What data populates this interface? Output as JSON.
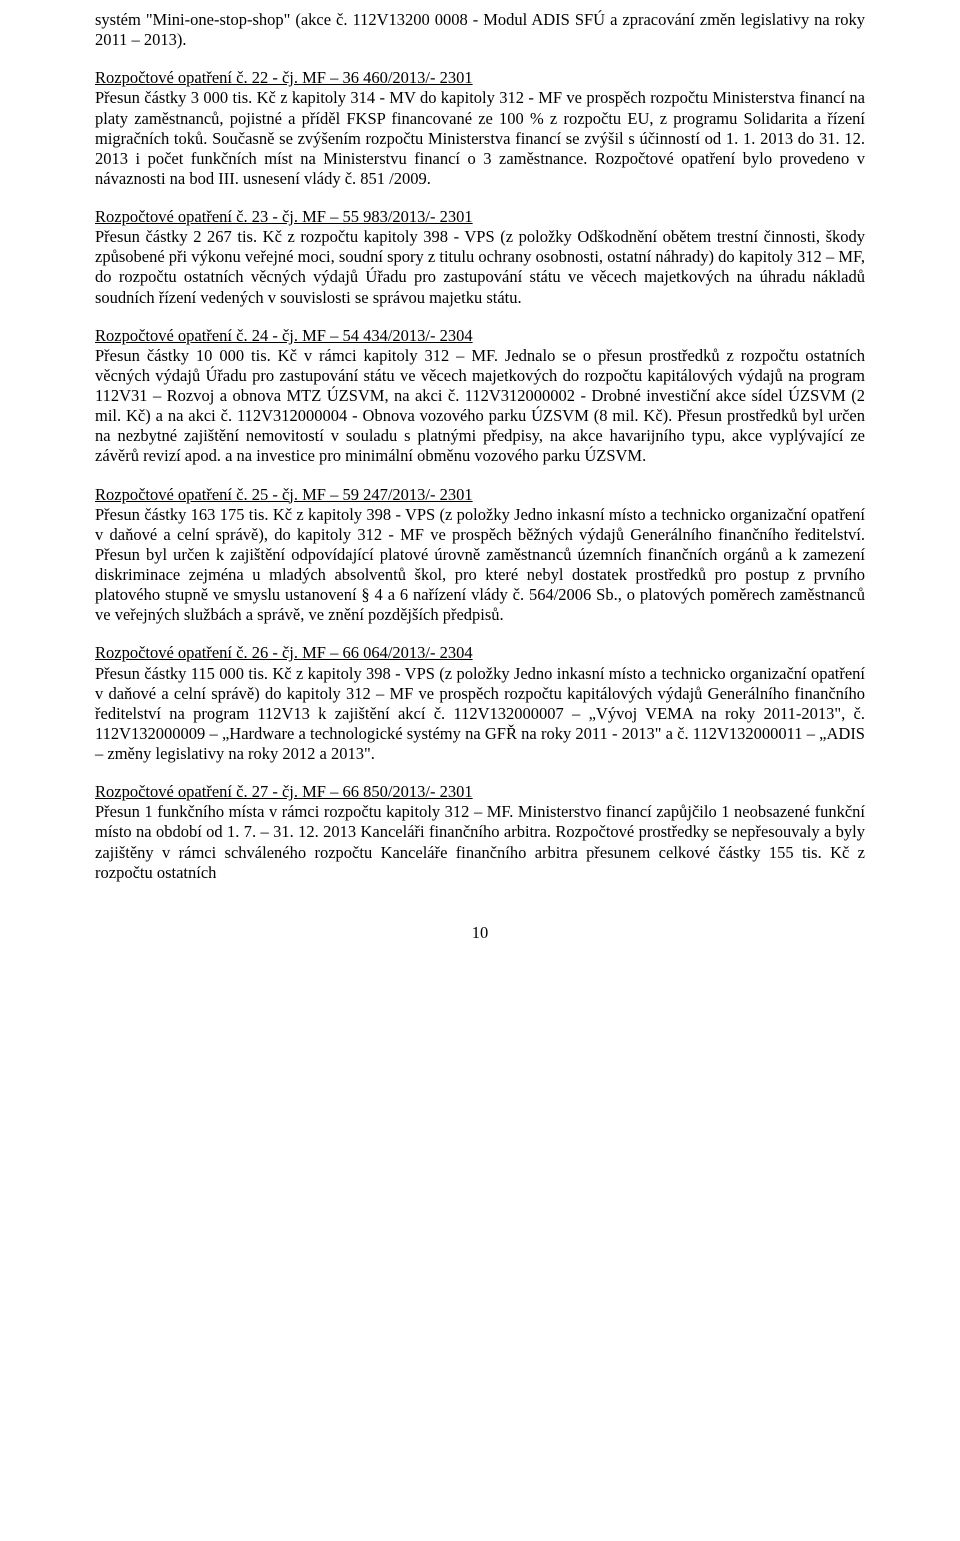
{
  "document": {
    "font_family": "Times New Roman",
    "font_size_pt": 12,
    "text_color": "#000000",
    "background_color": "#ffffff",
    "page_number": "10"
  },
  "intro_para": "systém \"Mini-one-stop-shop\" (akce č. 112V13200 0008 - Modul ADIS SFÚ a zpracování změn legislativy na roky 2011 – 2013).",
  "sections": [
    {
      "heading": "Rozpočtové opatření č. 22 - čj. MF – 36 460/2013/- 2301",
      "body": "Přesun částky 3 000 tis. Kč z kapitoly 314 - MV do kapitoly  312 - MF ve prospěch rozpočtu Ministerstva financí na platy zaměstnanců, pojistné a příděl FKSP financované ze 100 % z rozpočtu EU, z programu Solidarita a řízení migračních toků. Současně se zvýšením rozpočtu Ministerstva financí se  zvýšil s účinností od 1. 1. 2013 do 31. 12. 2013 i počet funkčních míst na Ministerstvu financí o 3 zaměstnance. Rozpočtové opatření bylo provedeno v návaznosti na bod III. usnesení vlády č. 851 /2009."
    },
    {
      "heading": "Rozpočtové opatření č. 23 - čj. MF – 55 983/2013/- 2301",
      "body": "Přesun částky 2 267 tis. Kč z rozpočtu kapitoly 398 - VPS (z položky Odškodnění obětem trestní činnosti, škody způsobené při výkonu veřejné moci, soudní spory z titulu ochrany osobnosti, ostatní náhrady) do kapitoly 312 – MF, do rozpočtu ostatních věcných  výdajů Úřadu pro zastupování státu ve  věcech majetkových na úhradu nákladů soudních řízení vedených v souvislosti se správou majetku státu."
    },
    {
      "heading": "Rozpočtové opatření č. 24 - čj. MF – 54 434/2013/- 2304",
      "body": "Přesun částky 10 000 tis. Kč v rámci kapitoly 312 – MF. Jednalo se o přesun prostředků z rozpočtu ostatních věcných výdajů Úřadu pro zastupování státu ve věcech majetkových do rozpočtu kapitálových výdajů na program 112V31 – Rozvoj a obnova MTZ ÚZSVM, na akci č. 112V312000002 - Drobné investiční akce sídel ÚZSVM (2 mil. Kč) a na akci č. 112V312000004 - Obnova vozového parku ÚZSVM (8 mil. Kč). Přesun prostředků byl určen na nezbytné zajištění nemovitostí v souladu s platnými předpisy, na akce havarijního typu, akce vyplývající ze závěrů revizí apod. a na investice pro minimální obměnu vozového parku ÚZSVM."
    },
    {
      "heading": "Rozpočtové opatření č. 25 - čj. MF – 59 247/2013/- 2301",
      "body": "Přesun částky 163 175 tis. Kč z kapitoly 398 - VPS (z položky Jedno inkasní místo a technicko organizační opatření v daňové a celní správě), do kapitoly  312 - MF ve prospěch běžných výdajů Generálního finančního ředitelství. Přesun byl určen k zajištění odpovídající platové úrovně zaměstnanců územních finančních orgánů a k zamezení diskriminace zejména u mladých absolventů škol, pro které nebyl dostatek prostředků pro postup z prvního platového stupně ve smyslu ustanovení § 4 a 6 nařízení vlády č. 564/2006 Sb., o platových poměrech zaměstnanců ve veřejných službách a správě, ve znění pozdějších předpisů."
    },
    {
      "heading": "Rozpočtové opatření č. 26 - čj. MF – 66 064/2013/- 2304",
      "body": "Přesun částky 115 000 tis. Kč z kapitoly 398 - VPS (z položky Jedno inkasní místo a technicko organizační opatření v daňové a celní správě) do kapitoly  312 – MF ve prospěch rozpočtu kapitálových výdajů Generálního finančního ředitelství na program 112V13 k zajištění akcí č. 112V132000007 – „Vývoj VEMA na roky 2011-2013\", č. 112V132000009 – „Hardware a technologické systémy na GFŘ na roky 2011 - 2013\" a č. 112V132000011 – „ADIS – změny legislativy na roky 2012 a 2013\"."
    },
    {
      "heading": "Rozpočtové opatření č. 27 - čj. MF – 66 850/2013/- 2301",
      "body": "Přesun 1 funkčního místa v rámci rozpočtu kapitoly 312 – MF. Ministerstvo financí zapůjčilo 1 neobsazené funkční místo na období od 1. 7. – 31. 12.  2013 Kanceláři finančního arbitra. Rozpočtové prostředky se nepřesouvaly a byly zajištěny v rámci schváleného rozpočtu Kanceláře finančního arbitra přesunem celkové částky 155 tis. Kč z rozpočtu ostatních"
    }
  ]
}
